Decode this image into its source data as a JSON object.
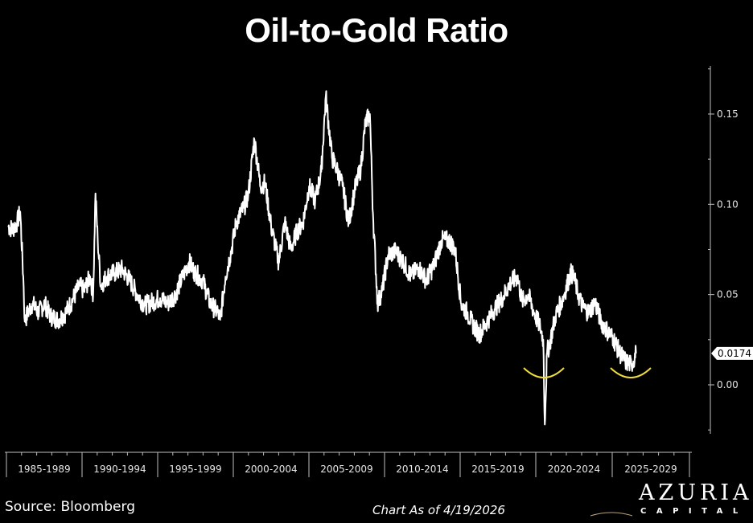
{
  "title": "Oil-to-Gold Ratio",
  "footer": {
    "source": "Source: Bloomberg",
    "as_of": "Chart As of 4/19/2026"
  },
  "logo": {
    "name": "AZURIA",
    "subtitle": "CAPITAL"
  },
  "colors": {
    "background": "#000000",
    "line": "#ffffff",
    "axis": "#bfbfbf",
    "highlight": "#f0dc3c",
    "logo_gold": "#b8a27a"
  },
  "chart_data": {
    "type": "line",
    "title": "Oil-to-Gold Ratio",
    "xlabel": "",
    "ylabel": "",
    "x_categories": [
      "1985-1989",
      "1990-1994",
      "1995-1999",
      "2000-2004",
      "2005-2009",
      "2010-2014",
      "2015-2019",
      "2020-2024",
      "2025-2029"
    ],
    "y_ticks": [
      "0.15",
      "0.10",
      "0.05",
      "0.00"
    ],
    "y_tick_values": [
      0.15,
      0.1,
      0.05,
      0.0
    ],
    "ylim": [
      -0.025,
      0.175
    ],
    "y_axis_position": "right",
    "grid": false,
    "last_value_label": "0.0174",
    "last_value": 0.0174,
    "annotations": [
      {
        "type": "yellow-smile-arc",
        "near": "2020 low"
      },
      {
        "type": "yellow-smile-arc",
        "near": "2025-2026 low"
      }
    ],
    "series": [
      {
        "name": "Oil-to-Gold Ratio",
        "x": [
          1985.0,
          1985.3,
          1985.6,
          1985.8,
          1986.0,
          1986.1,
          1986.3,
          1986.6,
          1987.0,
          1987.4,
          1987.8,
          1988.3,
          1988.8,
          1989.3,
          1989.7,
          1990.0,
          1990.4,
          1990.6,
          1990.75,
          1990.9,
          1991.1,
          1991.5,
          1992.0,
          1992.5,
          1993.0,
          1993.5,
          1994.0,
          1994.5,
          1995.0,
          1995.5,
          1996.0,
          1996.5,
          1996.9,
          1997.3,
          1997.8,
          1998.3,
          1998.8,
          1998.95,
          1999.3,
          1999.7,
          2000.0,
          2000.5,
          2000.8,
          2001.2,
          2001.6,
          2001.9,
          2002.3,
          2002.8,
          2003.2,
          2003.6,
          2004.0,
          2004.4,
          2004.8,
          2005.2,
          2005.6,
          2005.9,
          2006.3,
          2006.6,
          2007.0,
          2007.4,
          2007.8,
          2008.2,
          2008.5,
          2008.8,
          2009.0,
          2009.3,
          2009.6,
          2010.0,
          2010.5,
          2011.0,
          2011.5,
          2012.0,
          2012.5,
          2013.0,
          2013.5,
          2014.0,
          2014.4,
          2014.8,
          2015.2,
          2015.6,
          2016.0,
          2016.5,
          2017.0,
          2017.5,
          2018.0,
          2018.5,
          2018.8,
          2019.2,
          2019.6,
          2020.0,
          2020.2,
          2020.3,
          2020.45,
          2020.6,
          2021.0,
          2021.5,
          2022.0,
          2022.2,
          2022.5,
          2022.8,
          2023.2,
          2023.6,
          2024.0,
          2024.4,
          2024.8,
          2025.2,
          2025.6,
          2026.0,
          2026.3
        ],
        "values": [
          0.088,
          0.086,
          0.09,
          0.096,
          0.06,
          0.035,
          0.04,
          0.045,
          0.04,
          0.045,
          0.038,
          0.036,
          0.04,
          0.048,
          0.055,
          0.052,
          0.06,
          0.05,
          0.106,
          0.08,
          0.055,
          0.06,
          0.062,
          0.064,
          0.058,
          0.05,
          0.044,
          0.046,
          0.048,
          0.045,
          0.05,
          0.06,
          0.068,
          0.062,
          0.058,
          0.045,
          0.04,
          0.036,
          0.06,
          0.075,
          0.09,
          0.098,
          0.105,
          0.136,
          0.11,
          0.112,
          0.088,
          0.068,
          0.09,
          0.075,
          0.085,
          0.09,
          0.11,
          0.102,
          0.118,
          0.16,
          0.126,
          0.12,
          0.11,
          0.09,
          0.108,
          0.12,
          0.145,
          0.15,
          0.095,
          0.045,
          0.052,
          0.072,
          0.074,
          0.068,
          0.06,
          0.065,
          0.058,
          0.066,
          0.08,
          0.08,
          0.075,
          0.045,
          0.04,
          0.033,
          0.028,
          0.035,
          0.042,
          0.048,
          0.056,
          0.06,
          0.046,
          0.05,
          0.04,
          0.032,
          0.025,
          -0.022,
          0.018,
          0.022,
          0.038,
          0.048,
          0.062,
          0.06,
          0.05,
          0.043,
          0.04,
          0.046,
          0.035,
          0.03,
          0.026,
          0.018,
          0.013,
          0.011,
          0.0174
        ]
      }
    ]
  }
}
